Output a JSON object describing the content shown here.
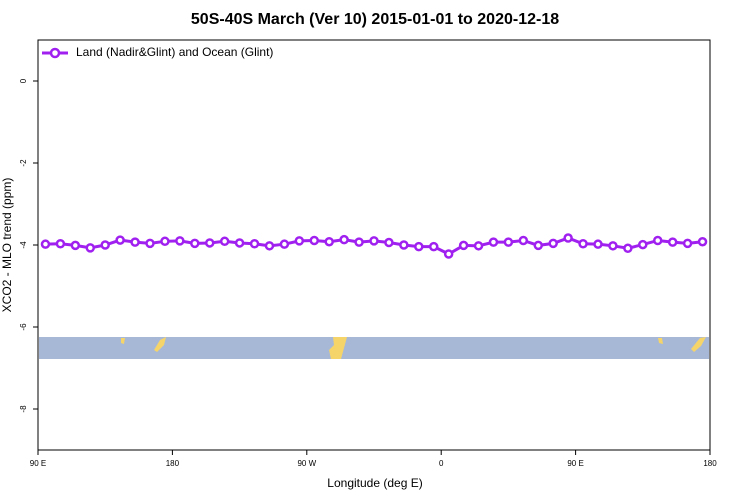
{
  "chart_data": {
    "type": "line",
    "title": "50S-40S March (Ver 10)   2015-01-01 to 2020-12-18",
    "x_label": "Longitude (deg E)",
    "y_label": "XCO2 - MLO trend (ppm)",
    "x": [
      95,
      105,
      115,
      125,
      135,
      145,
      155,
      165,
      175,
      185,
      195,
      205,
      215,
      225,
      235,
      245,
      255,
      265,
      275,
      285,
      295,
      305,
      315,
      325,
      335,
      345,
      355,
      365,
      375,
      385,
      395,
      405,
      415,
      425,
      435,
      445,
      455,
      465,
      475,
      485,
      495,
      505,
      515,
      525,
      535
    ],
    "series": [
      {
        "name": "Land (Nadir&Glint) and Ocean (Glint)",
        "color": "#a020f0",
        "values": [
          -3.98,
          -3.97,
          -4.01,
          -4.07,
          -4.0,
          -3.88,
          -3.93,
          -3.96,
          -3.91,
          -3.9,
          -3.96,
          -3.95,
          -3.91,
          -3.95,
          -3.97,
          -4.02,
          -3.98,
          -3.9,
          -3.89,
          -3.92,
          -3.87,
          -3.93,
          -3.9,
          -3.94,
          -4.0,
          -4.04,
          -4.04,
          -4.22,
          -4.01,
          -4.02,
          -3.93,
          -3.93,
          -3.89,
          -4.01,
          -3.96,
          -3.83,
          -3.97,
          -3.98,
          -4.02,
          -4.08,
          -3.99,
          -3.89,
          -3.93,
          -3.96,
          -3.92
        ]
      }
    ],
    "xlim": [
      90,
      540
    ],
    "xticks": [
      {
        "value": 90,
        "label": "90 E"
      },
      {
        "value": 180,
        "label": "180"
      },
      {
        "value": 270,
        "label": "90 W"
      },
      {
        "value": 360,
        "label": "0"
      },
      {
        "value": 450,
        "label": "90 E"
      },
      {
        "value": 540,
        "label": "180"
      }
    ],
    "ylim": [
      -9,
      1
    ],
    "yticks": [
      0,
      -2,
      -4,
      -6,
      -8
    ],
    "legend": "top-left"
  }
}
